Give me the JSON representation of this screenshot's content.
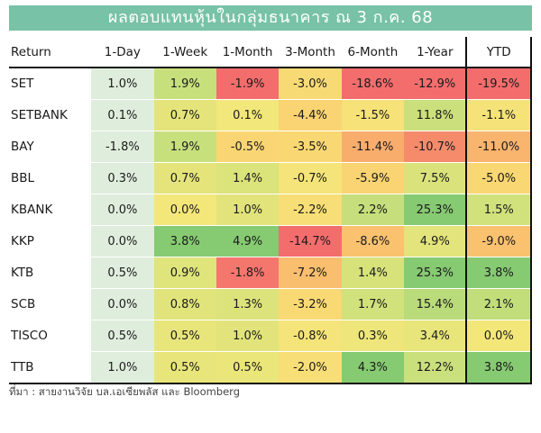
{
  "title": "ผลตอบแทนหุ้นในกลุ่มธนาคาร ณ 3 ก.ค. 68",
  "source": "ที่มา : สายงานวิจัย บล.เอเซียพลัส และ Bloomberg",
  "colors": {
    "title_bg": "#78c2a7",
    "label_col_bg": "#dfeedc",
    "very_negative": "#f46d6d",
    "negative": "#f8a16c",
    "slight_negative": "#fbd171",
    "neutral": "#f4e77a",
    "positive": "#c8e07c",
    "very_positive": "#86ca72"
  },
  "chart_data": {
    "type": "heatmap",
    "title": "ผลตอบแทนหุ้นในกลุ่มธนาคาร ณ 3 ก.ค. 68",
    "corner_label": "Return",
    "columns": [
      "1-Day",
      "1-Week",
      "1-Month",
      "3-Month",
      "6-Month",
      "1-Year",
      "YTD"
    ],
    "rows": [
      "SET",
      "SETBANK",
      "BAY",
      "BBL",
      "KBANK",
      "KKP",
      "KTB",
      "SCB",
      "TISCO",
      "TTB"
    ],
    "values": [
      [
        1.0,
        1.9,
        -1.9,
        -3.0,
        -18.6,
        -12.9,
        -19.5
      ],
      [
        0.1,
        0.7,
        0.1,
        -4.4,
        -1.5,
        11.8,
        -1.1
      ],
      [
        -1.8,
        1.9,
        -0.5,
        -3.5,
        -11.4,
        -10.7,
        -11.0
      ],
      [
        0.3,
        0.7,
        1.4,
        -0.7,
        -5.9,
        7.5,
        -5.0
      ],
      [
        0.0,
        0.0,
        1.0,
        -2.2,
        2.2,
        25.3,
        1.5
      ],
      [
        0.0,
        3.8,
        4.9,
        -14.7,
        -8.6,
        4.9,
        -9.0
      ],
      [
        0.5,
        0.9,
        -1.8,
        -7.2,
        1.4,
        25.3,
        3.8
      ],
      [
        0.0,
        0.8,
        1.3,
        -3.2,
        1.7,
        15.4,
        2.1
      ],
      [
        0.5,
        0.5,
        1.0,
        -0.8,
        0.3,
        3.4,
        0.0
      ],
      [
        1.0,
        0.5,
        0.5,
        -2.0,
        4.3,
        12.2,
        3.8
      ]
    ],
    "unit": "%"
  }
}
